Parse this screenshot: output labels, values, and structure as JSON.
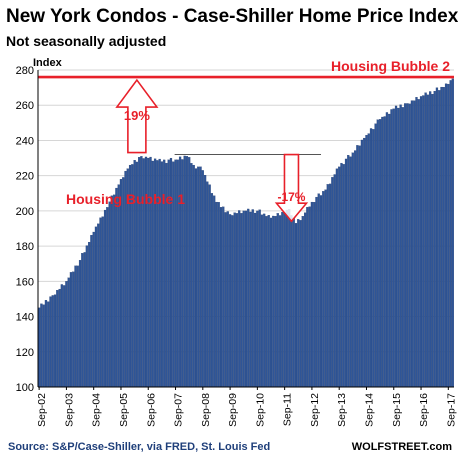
{
  "chart_data": {
    "type": "bar",
    "title": "New York Condos - Case-Shiller Home Price Index",
    "subtitle": "Not seasonally adjusted",
    "ylabel": "Index",
    "ylim": [
      100,
      280
    ],
    "yticks": [
      100,
      120,
      140,
      160,
      180,
      200,
      220,
      240,
      260,
      280
    ],
    "xticks": [
      "Sep-02",
      "Sep-03",
      "Sep-04",
      "Sep-05",
      "Sep-06",
      "Sep-07",
      "Sep-08",
      "Sep-09",
      "Sep-10",
      "Sep-11",
      "Sep-12",
      "Sep-13",
      "Sep-14",
      "Sep-15",
      "Sep-16",
      "Sep-17"
    ],
    "start": "Sep-02",
    "end": "Nov-17",
    "frequency": "monthly",
    "grid": true,
    "bar_color": "#2f5597",
    "annotation_color": "#e8202a",
    "keypoints": [
      {
        "date": "Sep-02",
        "value": 145
      },
      {
        "date": "Mar-03",
        "value": 152
      },
      {
        "date": "Sep-03",
        "value": 160
      },
      {
        "date": "Mar-04",
        "value": 172
      },
      {
        "date": "Sep-04",
        "value": 188
      },
      {
        "date": "Mar-05",
        "value": 202
      },
      {
        "date": "Sep-05",
        "value": 218
      },
      {
        "date": "Jan-06",
        "value": 226
      },
      {
        "date": "Jun-06",
        "value": 231
      },
      {
        "date": "Sep-06",
        "value": 230
      },
      {
        "date": "Mar-07",
        "value": 228
      },
      {
        "date": "Sep-07",
        "value": 229
      },
      {
        "date": "Feb-08",
        "value": 231
      },
      {
        "date": "May-08",
        "value": 226
      },
      {
        "date": "Sep-08",
        "value": 223
      },
      {
        "date": "Mar-09",
        "value": 205
      },
      {
        "date": "Sep-09",
        "value": 198
      },
      {
        "date": "Mar-10",
        "value": 200
      },
      {
        "date": "Sep-10",
        "value": 200
      },
      {
        "date": "Mar-11",
        "value": 196
      },
      {
        "date": "Sep-11",
        "value": 199
      },
      {
        "date": "Nov-11",
        "value": 201
      },
      {
        "date": "Feb-12",
        "value": 193
      },
      {
        "date": "May-12",
        "value": 197
      },
      {
        "date": "Sep-12",
        "value": 205
      },
      {
        "date": "Mar-13",
        "value": 212
      },
      {
        "date": "Sep-13",
        "value": 225
      },
      {
        "date": "Mar-14",
        "value": 233
      },
      {
        "date": "Sep-14",
        "value": 243
      },
      {
        "date": "Mar-15",
        "value": 252
      },
      {
        "date": "Sep-15",
        "value": 258
      },
      {
        "date": "Mar-16",
        "value": 261
      },
      {
        "date": "Sep-16",
        "value": 265
      },
      {
        "date": "Mar-17",
        "value": 268
      },
      {
        "date": "Sep-17",
        "value": 272
      },
      {
        "date": "Nov-17",
        "value": 275
      }
    ],
    "annotations": {
      "bubble2_label": "Housing Bubble 2",
      "bubble2_level": 276,
      "bubble1_label": "Housing Bubble 1",
      "peak1_level": 232,
      "trough_level": 193,
      "rise_label": "19%",
      "drop_label": "-17%"
    }
  },
  "footer": {
    "source": "Source: S&P/Case-Shiller, via FRED,  St. Louis Fed",
    "brand": "WOLFSTREET.com"
  }
}
